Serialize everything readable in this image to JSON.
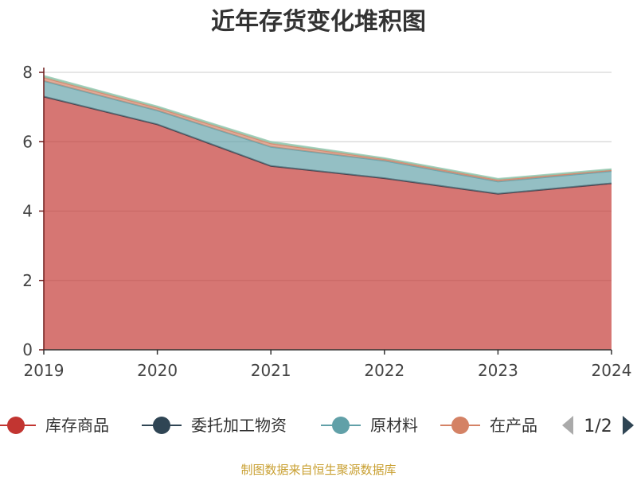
{
  "chart_data": {
    "type": "area",
    "stacked": true,
    "title": "近年存货变化堆积图",
    "categories": [
      "2019",
      "2020",
      "2021",
      "2022",
      "2023",
      "2024"
    ],
    "ylim": [
      0,
      8
    ],
    "yticks": [
      "0",
      "2",
      "4",
      "6",
      "8"
    ],
    "grid": true,
    "legend_position": "bottom",
    "series": [
      {
        "name": "库存商品",
        "color": "#c23531",
        "values": [
          7.3,
          6.5,
          5.3,
          4.95,
          4.5,
          4.8
        ]
      },
      {
        "name": "委托加工物资",
        "color": "#2f4554",
        "values": [
          0.0,
          0.0,
          0.0,
          0.0,
          0.0,
          0.0
        ]
      },
      {
        "name": "原材料",
        "color": "#61a0a8",
        "values": [
          0.45,
          0.4,
          0.55,
          0.5,
          0.35,
          0.35
        ]
      },
      {
        "name": "在产品",
        "color": "#d48265",
        "values": [
          0.1,
          0.08,
          0.1,
          0.05,
          0.05,
          0.03
        ]
      },
      {
        "name": "",
        "color": "#91c7ae",
        "values": [
          0.05,
          0.04,
          0.05,
          0.03,
          0.03,
          0.03
        ]
      }
    ]
  },
  "legend": {
    "page": "1/2"
  },
  "source": "制图数据来自恒生聚源数据库"
}
